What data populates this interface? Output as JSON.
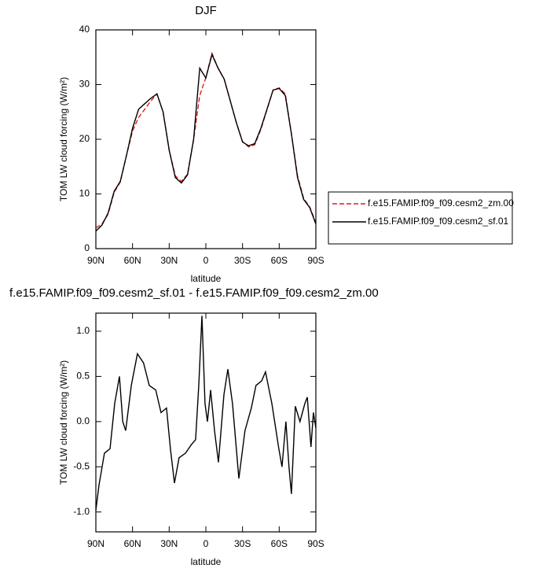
{
  "chart_data": [
    {
      "type": "line",
      "title": "DJF",
      "xlabel": "latitude",
      "ylabel": "TOM LW cloud forcing (W/m²)",
      "x": [
        90,
        85,
        80,
        75,
        70,
        65,
        60,
        55,
        50,
        45,
        40,
        35,
        30,
        25,
        20,
        15,
        10,
        5,
        0,
        -5,
        -10,
        -15,
        -20,
        -25,
        -30,
        -35,
        -40,
        -45,
        -50,
        -55,
        -60,
        -65,
        -70,
        -75,
        -80,
        -85,
        -90
      ],
      "xlim": [
        90,
        -90
      ],
      "xticks": [
        {
          "value": 90,
          "label": "90N"
        },
        {
          "value": 60,
          "label": "60N"
        },
        {
          "value": 30,
          "label": "30N"
        },
        0,
        {
          "value": -30,
          "label": "30S"
        },
        {
          "value": -60,
          "label": "60S"
        },
        {
          "value": -90,
          "label": "90S"
        }
      ],
      "ylim": [
        0,
        40
      ],
      "yticks": [
        0,
        10,
        20,
        30,
        40
      ],
      "legend": "right",
      "series": [
        {
          "name": "f.e15.FAMIP.f09_f09.cesm2_zm.00",
          "color": "#e41a1c",
          "line_style": "dashed",
          "values": [
            3.8,
            4.5,
            6.3,
            10.3,
            12.2,
            17,
            21.5,
            24,
            25.5,
            27,
            28.3,
            25,
            18,
            13.3,
            12.3,
            13.6,
            20,
            28,
            31.3,
            35.7,
            33,
            31,
            27,
            23,
            19.6,
            18.6,
            19,
            21.8,
            25.4,
            29,
            29.4,
            28.3,
            21,
            13.3,
            9.2,
            7.6,
            4.7
          ]
        },
        {
          "name": "f.e15.FAMIP.f09_f09.cesm2_sf.01",
          "color": "#000000",
          "line_style": "solid",
          "values": [
            3.2,
            4.3,
            6.5,
            10.5,
            12.3,
            17,
            22,
            25.5,
            26.5,
            27.5,
            28.3,
            25,
            18,
            13,
            12,
            13.5,
            20,
            33,
            31.2,
            35.5,
            33,
            31,
            27,
            23,
            19.5,
            18.8,
            19.2,
            22,
            25.5,
            29,
            29.3,
            28,
            21,
            13,
            9,
            7.5,
            4.5
          ]
        }
      ]
    },
    {
      "type": "line",
      "title": "f.e15.FAMIP.f09_f09.cesm2_sf.01 - f.e15.FAMIP.f09_f09.cesm2_zm.00",
      "xlabel": "latitude",
      "ylabel": "TOM LW cloud forcing (W/m²)",
      "x": [
        90,
        87.4,
        83,
        78.4,
        74.6,
        70.7,
        68,
        65.6,
        61,
        56,
        51,
        46.3,
        41,
        36.7,
        32.2,
        29,
        25.7,
        21.9,
        16.7,
        11.6,
        8.4,
        5.8,
        3.2,
        0.7,
        -1.3,
        -3.9,
        -7.1,
        -10.3,
        -14.8,
        -18,
        -21.8,
        -27,
        -32,
        -37.2,
        -41,
        -45.6,
        -48.8,
        -54,
        -59.7,
        -62.3,
        -65.5,
        -68,
        -70,
        -73.2,
        -77,
        -81,
        -83,
        -86,
        -88,
        -90
      ],
      "xlim": [
        90,
        -90
      ],
      "xticks": [
        {
          "value": 90,
          "label": "90N"
        },
        {
          "value": 60,
          "label": "60N"
        },
        {
          "value": 30,
          "label": "30N"
        },
        0,
        {
          "value": -30,
          "label": "30S"
        },
        {
          "value": -60,
          "label": "60S"
        },
        {
          "value": -90,
          "label": "90S"
        }
      ],
      "ylim": [
        -1.22,
        1.2
      ],
      "yticks": [
        {
          "value": -1,
          "label": "-1.0"
        },
        -0.5,
        {
          "value": 0,
          "label": "0.0"
        },
        0.5,
        {
          "value": 1,
          "label": "1.0"
        }
      ],
      "series": [
        {
          "color": "#000000",
          "line_style": "solid",
          "values": [
            -0.98,
            -0.7,
            -0.35,
            -0.3,
            0.2,
            0.5,
            0.0,
            -0.1,
            0.4,
            0.75,
            0.65,
            0.4,
            0.35,
            0.1,
            0.15,
            -0.3,
            -0.68,
            -0.4,
            -0.35,
            -0.25,
            -0.2,
            0.4,
            1.17,
            0.2,
            0.0,
            0.35,
            -0.1,
            -0.45,
            0.3,
            0.58,
            0.2,
            -0.63,
            -0.1,
            0.15,
            0.4,
            0.45,
            0.55,
            0.2,
            -0.3,
            -0.5,
            0.0,
            -0.5,
            -0.8,
            0.17,
            0.0,
            0.2,
            0.27,
            -0.28,
            0.1,
            -0.07
          ]
        }
      ]
    }
  ]
}
